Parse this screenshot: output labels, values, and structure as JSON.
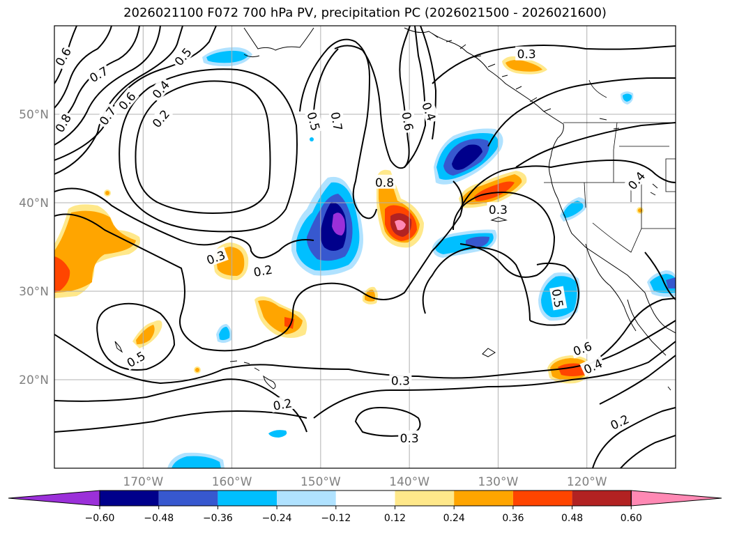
{
  "title": "2026021100 F072 700 hPa PV, precipitation PC (2026021500 - 2026021600)",
  "map": {
    "lon_range": [
      -180,
      -110
    ],
    "lat_range": [
      10,
      60
    ],
    "lat_ticks": [
      {
        "value": 20,
        "label": "20°N"
      },
      {
        "value": 30,
        "label": "30°N"
      },
      {
        "value": 40,
        "label": "40°N"
      },
      {
        "value": 50,
        "label": "50°N"
      }
    ],
    "lon_ticks": [
      {
        "value": -170,
        "label": "170°W"
      },
      {
        "value": -160,
        "label": "160°W"
      },
      {
        "value": -150,
        "label": "150°W"
      },
      {
        "value": -140,
        "label": "140°W"
      },
      {
        "value": -130,
        "label": "130°W"
      },
      {
        "value": -120,
        "label": "120°W"
      }
    ],
    "gridlines": true
  },
  "contour_labels": [
    {
      "text": "0.6",
      "lon": -179,
      "lat": 56.5,
      "rot": -60
    },
    {
      "text": "0.7",
      "lon": -175,
      "lat": 54.5,
      "rot": -30
    },
    {
      "text": "0.5",
      "lon": -165.5,
      "lat": 56.5,
      "rot": -50
    },
    {
      "text": "0.6",
      "lon": -171.8,
      "lat": 51.5,
      "rot": -50
    },
    {
      "text": "0.7",
      "lon": -174,
      "lat": 49.8,
      "rot": -55
    },
    {
      "text": "0.4",
      "lon": -168,
      "lat": 52.8,
      "rot": -50
    },
    {
      "text": "0.8",
      "lon": -179,
      "lat": 49,
      "rot": -60
    },
    {
      "text": "0.2",
      "lon": -168,
      "lat": 49.5,
      "rot": -50
    },
    {
      "text": "0.5",
      "lon": -150.8,
      "lat": 49.2,
      "rot": 75
    },
    {
      "text": "0.7",
      "lon": -148.2,
      "lat": 49.2,
      "rot": 80
    },
    {
      "text": "0.6",
      "lon": -140.2,
      "lat": 49.2,
      "rot": 80
    },
    {
      "text": "0.4",
      "lon": -137.8,
      "lat": 50.3,
      "rot": 70
    },
    {
      "text": "0.8",
      "lon": -142.8,
      "lat": 42.3,
      "rot": 0
    },
    {
      "text": "0.3",
      "lon": -126.8,
      "lat": 56.8,
      "rot": 0
    },
    {
      "text": "0.3",
      "lon": -130,
      "lat": 39.2,
      "rot": 0
    },
    {
      "text": "0.3",
      "lon": -161.8,
      "lat": 33.8,
      "rot": -20
    },
    {
      "text": "0.2",
      "lon": -156.5,
      "lat": 32.3,
      "rot": -10
    },
    {
      "text": "0.5",
      "lon": -123.3,
      "lat": 29.2,
      "rot": 80
    },
    {
      "text": "0.6",
      "lon": -120.5,
      "lat": 23.5,
      "rot": -20
    },
    {
      "text": "0.4",
      "lon": -119.3,
      "lat": 21.5,
      "rot": -25
    },
    {
      "text": "0.5",
      "lon": -170.8,
      "lat": 22.3,
      "rot": -30
    },
    {
      "text": "0.3",
      "lon": -141,
      "lat": 19.9,
      "rot": 0
    },
    {
      "text": "0.2",
      "lon": -154.3,
      "lat": 17.2,
      "rot": -10
    },
    {
      "text": "0.3",
      "lon": -140,
      "lat": 13.4,
      "rot": 0
    },
    {
      "text": "0.2",
      "lon": -116.3,
      "lat": 15.2,
      "rot": -25
    },
    {
      "text": "0.4",
      "lon": -114.4,
      "lat": 42.5,
      "rot": -50
    }
  ],
  "colorbar": {
    "ticks": [
      "−0.60",
      "−0.48",
      "−0.36",
      "−0.24",
      "−0.12",
      "0.12",
      "0.24",
      "0.36",
      "0.48",
      "0.60"
    ],
    "colors": [
      "#9b30d9",
      "#00008b",
      "#3758cf",
      "#00bfff",
      "#b0e2ff",
      "#ffffff",
      "#ffe88a",
      "#ffa500",
      "#ff4500",
      "#b22222",
      "#ff89b4"
    ]
  },
  "chart_data": {
    "type": "heatmap",
    "title": "2026021100 F072 700 hPa PV, precipitation PC (2026021500 - 2026021600)",
    "levels": [
      -0.6,
      -0.48,
      -0.36,
      -0.24,
      -0.12,
      0.12,
      0.24,
      0.36,
      0.48,
      0.6
    ]
  }
}
